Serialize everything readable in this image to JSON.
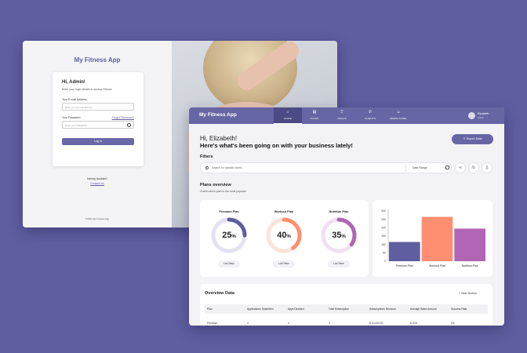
{
  "login": {
    "brand": "My Fitness App",
    "greeting": "Hi, Admin!",
    "subtitle": "Enter your login details to access Fitness",
    "email_label": "Your E-mail Address",
    "email_placeholder": "Enter your E-mail address",
    "password_label": "Your Password",
    "forgot_label": "Forgot Password?",
    "password_placeholder": "Enter your Password",
    "login_button": "Log In",
    "help_text": "Having troubles?",
    "contact_link": "Contact us!",
    "copyright": "©2024 My Fitness App"
  },
  "dashboard": {
    "brand": "My Fitness App",
    "nav": [
      {
        "label": "HOME",
        "icon": "home-icon",
        "active": true
      },
      {
        "label": "PLANS",
        "icon": "clipboard-icon",
        "active": false
      },
      {
        "label": "GOALS",
        "icon": "trophy-icon",
        "active": false
      },
      {
        "label": "CLIENTS",
        "icon": "phone-icon",
        "active": false
      },
      {
        "label": "ADMIN PANEL",
        "icon": "users-icon",
        "active": false
      }
    ],
    "user": {
      "name": "Elizabeth",
      "role": "Admin"
    },
    "greeting": "Hi, Elizabeth!",
    "headline": "Here's what's been going on with your business lately!",
    "export_button": "Export Data",
    "filters_title": "Filters",
    "search_placeholder": "Search for specific client...",
    "date_placeholder": "Date Range",
    "plans_title": "Plans overview",
    "plans_subtitle": "Check which plan is the most popular!",
    "plans": [
      {
        "name": "Premium Plan",
        "percent": 25,
        "color": "#5f5ea0",
        "track": "#e3e2f1",
        "button": "List View"
      },
      {
        "name": "Workout Plan",
        "percent": 40,
        "color": "#ff8f70",
        "track": "#fde3db",
        "button": "List View"
      },
      {
        "name": "Nutrition Plan",
        "percent": 35,
        "color": "#b066b4",
        "track": "#f1e0f2",
        "button": "List View"
      }
    ],
    "overview_title": "Overview Data",
    "hide_section": "Hide Section",
    "table_headers": [
      "Plan",
      "Applications Submitted",
      "Apps Decided",
      "Total Subscription",
      "Subscriptions Revenue",
      "Average Sales Amount",
      "Success Rate"
    ],
    "table_rows": [
      [
        "Premium",
        "4",
        "4",
        "3",
        "$ 10,000.00",
        "$ 0.00",
        "0%"
      ]
    ]
  },
  "chart_data": {
    "type": "bar",
    "categories": [
      "Premium Plan",
      "Workout Plan",
      "Nutrition Plan"
    ],
    "values": [
      115,
      265,
      195
    ],
    "colors": [
      "#5f5ea0",
      "#ff8f70",
      "#b066b4"
    ],
    "yticks": [
      0,
      50,
      100,
      150,
      200,
      250,
      300
    ],
    "ylim": [
      0,
      300
    ]
  }
}
